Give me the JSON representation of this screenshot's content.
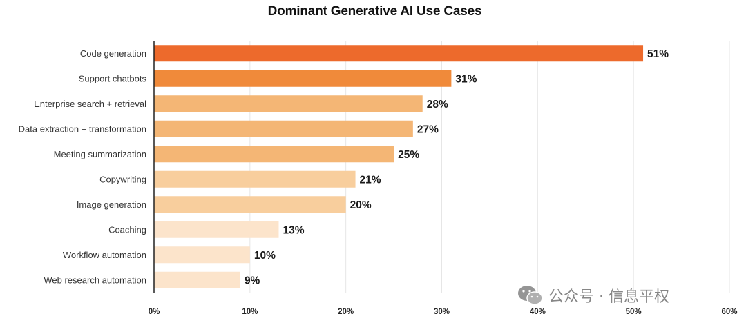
{
  "chart_data": {
    "type": "bar",
    "orientation": "horizontal",
    "title": "Dominant Generative AI Use Cases",
    "categories": [
      "Code generation",
      "Support chatbots",
      "Enterprise search + retrieval",
      "Data extraction + transformation",
      "Meeting summarization",
      "Copywriting",
      "Image generation",
      "Coaching",
      "Workflow automation",
      "Web research automation"
    ],
    "values": [
      51,
      31,
      28,
      27,
      25,
      21,
      20,
      13,
      10,
      9
    ],
    "value_labels": [
      "51%",
      "31%",
      "28%",
      "27%",
      "25%",
      "21%",
      "20%",
      "13%",
      "10%",
      "9%"
    ],
    "bar_colors": [
      "#ED6A2C",
      "#F08A3A",
      "#F4B675",
      "#F4B675",
      "#F4B675",
      "#F8CE9D",
      "#F8CE9D",
      "#FCE4CB",
      "#FCE4CB",
      "#FCE4CB"
    ],
    "xlim": [
      0,
      60
    ],
    "xticks": [
      0,
      10,
      20,
      30,
      40,
      50,
      60
    ],
    "xtick_labels": [
      "0%",
      "10%",
      "20%",
      "30%",
      "40%",
      "50%",
      "60%"
    ],
    "grid": "vertical",
    "xlabel": "",
    "ylabel": ""
  },
  "watermark": {
    "text": "公众号 · 信息平权",
    "icon": "wechat-icon"
  }
}
